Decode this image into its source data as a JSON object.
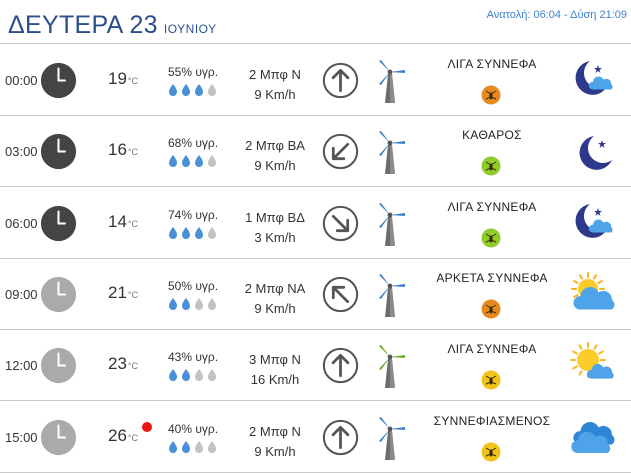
{
  "header": {
    "day": "ΔΕΥΤΕΡΑ 23",
    "month": "ΙΟΥΝΙΟΥ",
    "sun_times": "Ανατολή: 06:04 - Δύση 21:09"
  },
  "temp_unit": "°C",
  "rows": [
    {
      "time": "00:00",
      "temp": "19",
      "humidity": "55% υγρ.",
      "drops_filled": 3,
      "wind_bft": "2 Μπφ Ν",
      "wind_kmh": "9 Km/h",
      "wind_rotation_deg": 0,
      "turbine_color": "#3d7fc9",
      "condition": "ΛΙΓΑ ΣΥΝΝΕΦΑ",
      "badge_color": "#e68a1f",
      "weather_icon": "moon-cloud-icon",
      "alert": false,
      "clock_color": "#444444"
    },
    {
      "time": "03:00",
      "temp": "16",
      "humidity": "68% υγρ.",
      "drops_filled": 3,
      "wind_bft": "2 Μπφ ΒΑ",
      "wind_kmh": "9 Km/h",
      "wind_rotation_deg": 225,
      "turbine_color": "#3d7fc9",
      "condition": "ΚΑΘΑΡΟΣ",
      "badge_color": "#8fcc2a",
      "weather_icon": "moon-icon",
      "alert": false,
      "clock_color": "#444444"
    },
    {
      "time": "06:00",
      "temp": "14",
      "humidity": "74% υγρ.",
      "drops_filled": 3,
      "wind_bft": "1 Μπφ ΒΔ",
      "wind_kmh": "3 Km/h",
      "wind_rotation_deg": 135,
      "turbine_color": "#3d7fc9",
      "condition": "ΛΙΓΑ ΣΥΝΝΕΦΑ",
      "badge_color": "#8fcc2a",
      "weather_icon": "moon-cloud-icon",
      "alert": false,
      "clock_color": "#444444"
    },
    {
      "time": "09:00",
      "temp": "21",
      "humidity": "50% υγρ.",
      "drops_filled": 2,
      "wind_bft": "2 Μπφ ΝΑ",
      "wind_kmh": "9 Km/h",
      "wind_rotation_deg": 315,
      "turbine_color": "#3d7fc9",
      "condition": "ΑΡΚΕΤΑ ΣΥΝΝΕΦΑ",
      "badge_color": "#e68a1f",
      "weather_icon": "sun-cloud-big-icon",
      "alert": false,
      "clock_color": "#aaaaaa"
    },
    {
      "time": "12:00",
      "temp": "23",
      "humidity": "43% υγρ.",
      "drops_filled": 2,
      "wind_bft": "3 Μπφ Ν",
      "wind_kmh": "16 Km/h",
      "wind_rotation_deg": 0,
      "turbine_color": "#6aaa2a",
      "condition": "ΛΙΓΑ ΣΥΝΝΕΦΑ",
      "badge_color": "#f2c218",
      "weather_icon": "sun-cloud-icon",
      "alert": false,
      "clock_color": "#aaaaaa"
    },
    {
      "time": "15:00",
      "temp": "26",
      "humidity": "40% υγρ.",
      "drops_filled": 2,
      "wind_bft": "2 Μπφ Ν",
      "wind_kmh": "9 Km/h",
      "wind_rotation_deg": 0,
      "turbine_color": "#3d7fc9",
      "condition": "ΣΥΝΝΕΦΙΑΣΜΕΝΟΣ",
      "badge_color": "#f2c218",
      "weather_icon": "cloud-icon",
      "alert": true,
      "clock_color": "#aaaaaa"
    }
  ]
}
